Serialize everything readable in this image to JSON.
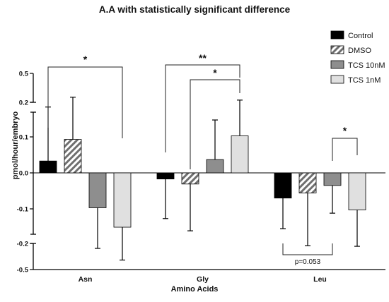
{
  "chart_data": {
    "type": "bar",
    "title": "A.A with statistically significant  difference",
    "xlabel": "Amino Acids",
    "ylabel": "pmol/hour/embryo",
    "categories": [
      "Asn",
      "Gly",
      "Leu"
    ],
    "ylim": [
      -0.5,
      0.5
    ],
    "axis_break": {
      "lower": [
        -0.2,
        -0.17
      ],
      "upper": [
        0.17,
        0.2
      ]
    },
    "yticks": [
      {
        "value": 0.5,
        "label": "0.5"
      },
      {
        "value": 0.2,
        "label": "0.2"
      },
      {
        "value": 0.1,
        "label": "0.1"
      },
      {
        "value": 0.0,
        "label": "0.0"
      },
      {
        "value": -0.1,
        "label": "-0.1"
      },
      {
        "value": -0.2,
        "label": "-0.2"
      },
      {
        "value": -0.5,
        "label": "-0.5"
      }
    ],
    "legend_position": "top-right",
    "series": [
      {
        "name": "Control",
        "color": "#000000",
        "pattern": "solid",
        "values": [
          0.033,
          -0.017,
          -0.07
        ],
        "error": [
          0.15,
          0.11,
          0.085
        ]
      },
      {
        "name": "DMSO",
        "color": "#8c8c8c",
        "pattern": "hatched",
        "values": [
          0.093,
          -0.031,
          -0.056
        ],
        "error": [
          0.16,
          0.13,
          0.17
        ]
      },
      {
        "name": "TCS 10nM",
        "color": "#8e8e8e",
        "pattern": "solid",
        "values": [
          -0.097,
          0.037,
          -0.035
        ],
        "error": [
          0.16,
          0.11,
          0.077
        ]
      },
      {
        "name": "TCS 1nM",
        "color": "#e0e0e0",
        "pattern": "solid",
        "values": [
          -0.151,
          0.103,
          -0.103
        ],
        "error": [
          0.24,
          0.12,
          0.13
        ]
      }
    ],
    "annotations": [
      {
        "type": "bracket",
        "group": "Asn",
        "from_series": "Control",
        "to_series": "TCS 1nM",
        "side": "top",
        "text": "*"
      },
      {
        "type": "bracket",
        "group": "Gly",
        "from_series": "Control",
        "to_series": "TCS 1nM",
        "side": "top",
        "text": "**"
      },
      {
        "type": "bracket",
        "group": "Gly",
        "from_series": "DMSO",
        "to_series": "TCS 1nM",
        "side": "top",
        "text": "*"
      },
      {
        "type": "bracket",
        "group": "Leu",
        "from_series": "TCS 10nM",
        "to_series": "TCS 1nM",
        "side": "top",
        "text": "*"
      },
      {
        "type": "bracket",
        "group": "Leu",
        "from_series": "Control",
        "to_series": "TCS 10nM",
        "side": "bottom",
        "text": "p=0.053"
      }
    ]
  }
}
